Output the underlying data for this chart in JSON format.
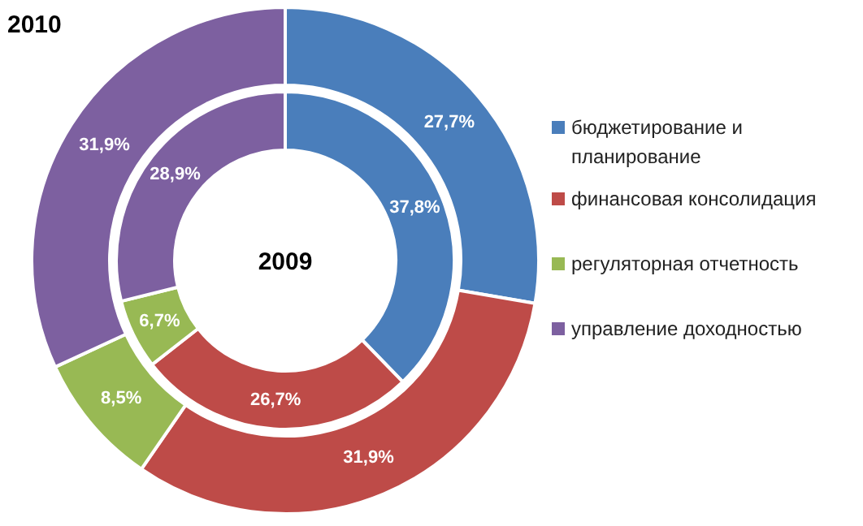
{
  "chart_data": {
    "type": "donut",
    "categories": [
      "бюджетирование и планирование",
      "финансовая консолидация",
      "регуляторная отчетность",
      "управление доходностью"
    ],
    "colors": [
      "#4a7ebb",
      "#be4b48",
      "#98b954",
      "#7d60a0"
    ],
    "series": [
      {
        "name": "2010",
        "values": [
          27.7,
          31.9,
          8.5,
          31.9
        ],
        "value_labels": [
          "27,7%",
          "31,9%",
          "8,5%",
          "31,9%"
        ]
      },
      {
        "name": "2009",
        "values": [
          37.8,
          26.7,
          6.7,
          28.9
        ],
        "value_labels": [
          "37,8%",
          "26,7%",
          "6,7%",
          "28,9%"
        ]
      }
    ],
    "legend": "right"
  }
}
